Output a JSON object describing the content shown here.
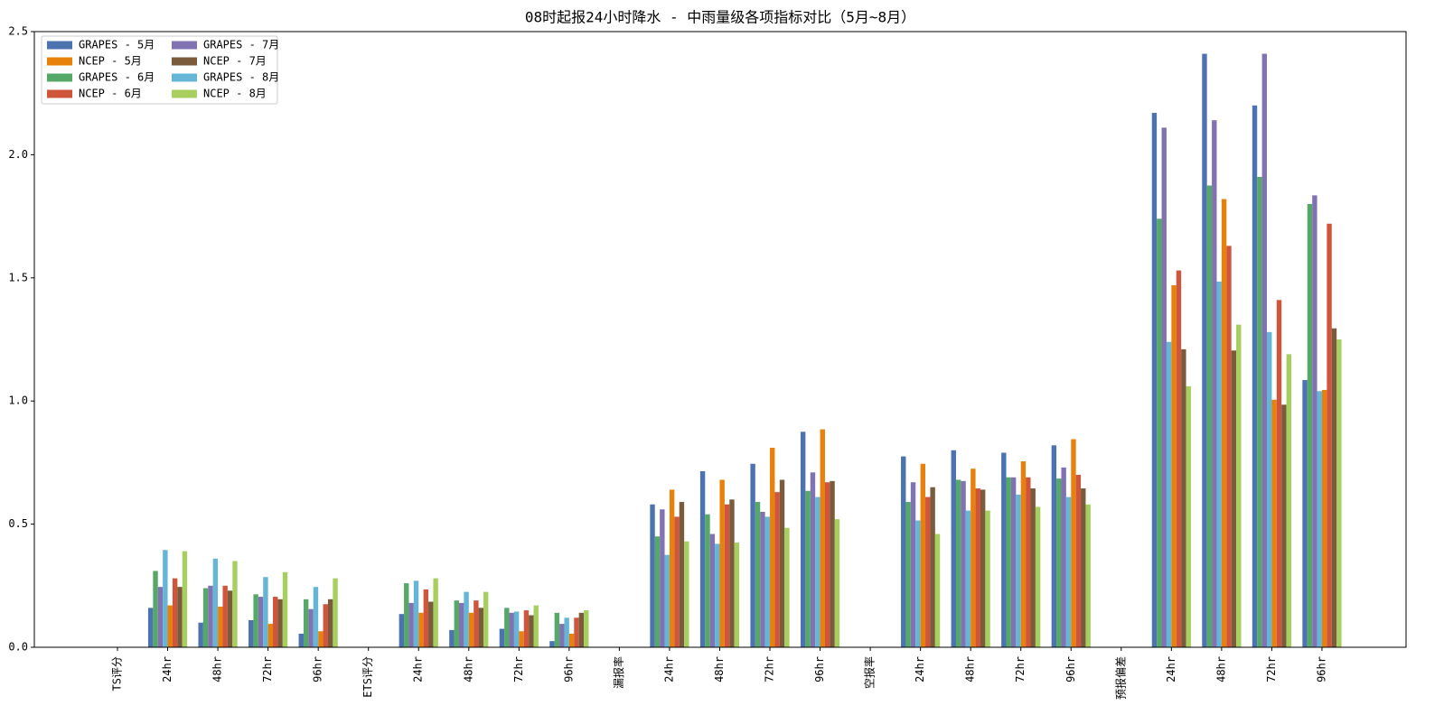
{
  "chart_data": {
    "type": "bar",
    "title": "08时起报24小时降水 - 中雨量级各项指标对比（5月~8月）",
    "categories": [
      "TS评分",
      "24hr",
      "48hr",
      "72hr",
      "96hr",
      "ETS评分",
      "24hr",
      "48hr",
      "72hr",
      "96hr",
      "漏报率",
      "24hr",
      "48hr",
      "72hr",
      "96hr",
      "空报率",
      "24hr",
      "48hr",
      "72hr",
      "96hr",
      "预报偏差",
      "24hr",
      "48hr",
      "72hr",
      "96hr"
    ],
    "series": [
      {
        "name": "GRAPES - 5月",
        "color": "#4c72b0",
        "values": [
          null,
          0.16,
          0.1,
          0.11,
          0.055,
          null,
          0.135,
          0.07,
          0.075,
          0.025,
          null,
          0.58,
          0.715,
          0.745,
          0.875,
          null,
          0.775,
          0.8,
          0.79,
          0.82,
          null,
          2.17,
          2.41,
          2.2,
          1.085
        ]
      },
      {
        "name": "GRAPES - 6月",
        "color": "#55a868",
        "values": [
          null,
          0.31,
          0.24,
          0.215,
          0.195,
          null,
          0.26,
          0.19,
          0.16,
          0.14,
          null,
          0.45,
          0.54,
          0.59,
          0.635,
          null,
          0.59,
          0.68,
          0.69,
          0.685,
          null,
          1.74,
          1.875,
          1.91,
          1.8
        ]
      },
      {
        "name": "GRAPES - 7月",
        "color": "#8172b2",
        "values": [
          null,
          0.245,
          0.25,
          0.205,
          0.155,
          null,
          0.18,
          0.18,
          0.14,
          0.095,
          null,
          0.56,
          0.46,
          0.55,
          0.71,
          null,
          0.67,
          0.675,
          0.69,
          0.73,
          null,
          2.11,
          2.14,
          2.41,
          1.835
        ]
      },
      {
        "name": "GRAPES - 8月",
        "color": "#64b5d6",
        "values": [
          null,
          0.395,
          0.36,
          0.285,
          0.245,
          null,
          0.27,
          0.225,
          0.145,
          0.12,
          null,
          0.375,
          0.42,
          0.53,
          0.61,
          null,
          0.515,
          0.555,
          0.62,
          0.61,
          null,
          1.24,
          1.485,
          1.28,
          1.04
        ]
      },
      {
        "name": "NCEP - 5月",
        "color": "#e8800c",
        "values": [
          null,
          0.17,
          0.165,
          0.095,
          0.065,
          null,
          0.14,
          0.14,
          0.065,
          0.055,
          null,
          0.64,
          0.68,
          0.81,
          0.885,
          null,
          0.745,
          0.725,
          0.755,
          0.845,
          null,
          1.47,
          1.82,
          1.005,
          1.045
        ]
      },
      {
        "name": "NCEP - 6月",
        "color": "#cf553c",
        "values": [
          null,
          0.28,
          0.25,
          0.205,
          0.175,
          null,
          0.235,
          0.19,
          0.15,
          0.12,
          null,
          0.53,
          0.58,
          0.63,
          0.67,
          null,
          0.61,
          0.645,
          0.69,
          0.7,
          null,
          1.53,
          1.63,
          1.41,
          1.72
        ]
      },
      {
        "name": "NCEP - 7月",
        "color": "#7a5c3c",
        "values": [
          null,
          0.245,
          0.23,
          0.195,
          0.195,
          null,
          0.185,
          0.16,
          0.13,
          0.14,
          null,
          0.59,
          0.6,
          0.68,
          0.675,
          null,
          0.65,
          0.64,
          0.645,
          0.645,
          null,
          1.21,
          1.205,
          0.985,
          1.295
        ]
      },
      {
        "name": "NCEP - 8月",
        "color": "#a6cf60",
        "values": [
          null,
          0.39,
          0.35,
          0.305,
          0.28,
          null,
          0.28,
          0.225,
          0.17,
          0.15,
          null,
          0.43,
          0.425,
          0.485,
          0.52,
          null,
          0.46,
          0.555,
          0.57,
          0.58,
          null,
          1.06,
          1.31,
          1.19,
          1.25
        ]
      }
    ],
    "ylim": [
      0,
      2.5
    ],
    "yticks": [
      {
        "value": 0,
        "label": "0.0"
      },
      0.5,
      {
        "value": 1,
        "label": "1.0"
      },
      1.5,
      {
        "value": 2,
        "label": "2.0"
      },
      2.5
    ],
    "legend": "upper left"
  }
}
